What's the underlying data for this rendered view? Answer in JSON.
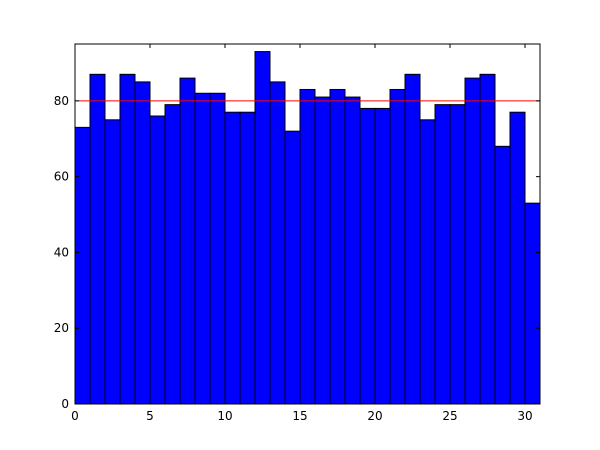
{
  "chart_data": {
    "type": "histogram",
    "bins": [
      0,
      1,
      2,
      3,
      4,
      5,
      6,
      7,
      8,
      9,
      10,
      11,
      12,
      13,
      14,
      15,
      16,
      17,
      18,
      19,
      20,
      21,
      22,
      23,
      24,
      25,
      26,
      27,
      28,
      29,
      30,
      31
    ],
    "values": [
      73,
      87,
      75,
      87,
      85,
      76,
      79,
      86,
      82,
      82,
      77,
      77,
      93,
      85,
      72,
      83,
      81,
      83,
      81,
      78,
      78,
      83,
      87,
      75,
      79,
      79,
      86,
      87,
      68,
      77,
      53
    ],
    "color": "#0000ff",
    "edgecolor": "#000000",
    "reference_line": {
      "value": 80,
      "color": "#ff0000"
    },
    "xlim": [
      0,
      31
    ],
    "xticks": [
      0,
      5,
      10,
      15,
      20,
      25,
      30
    ],
    "ylim": [
      0,
      95
    ],
    "yticks": [
      0,
      20,
      40,
      60,
      80
    ]
  }
}
